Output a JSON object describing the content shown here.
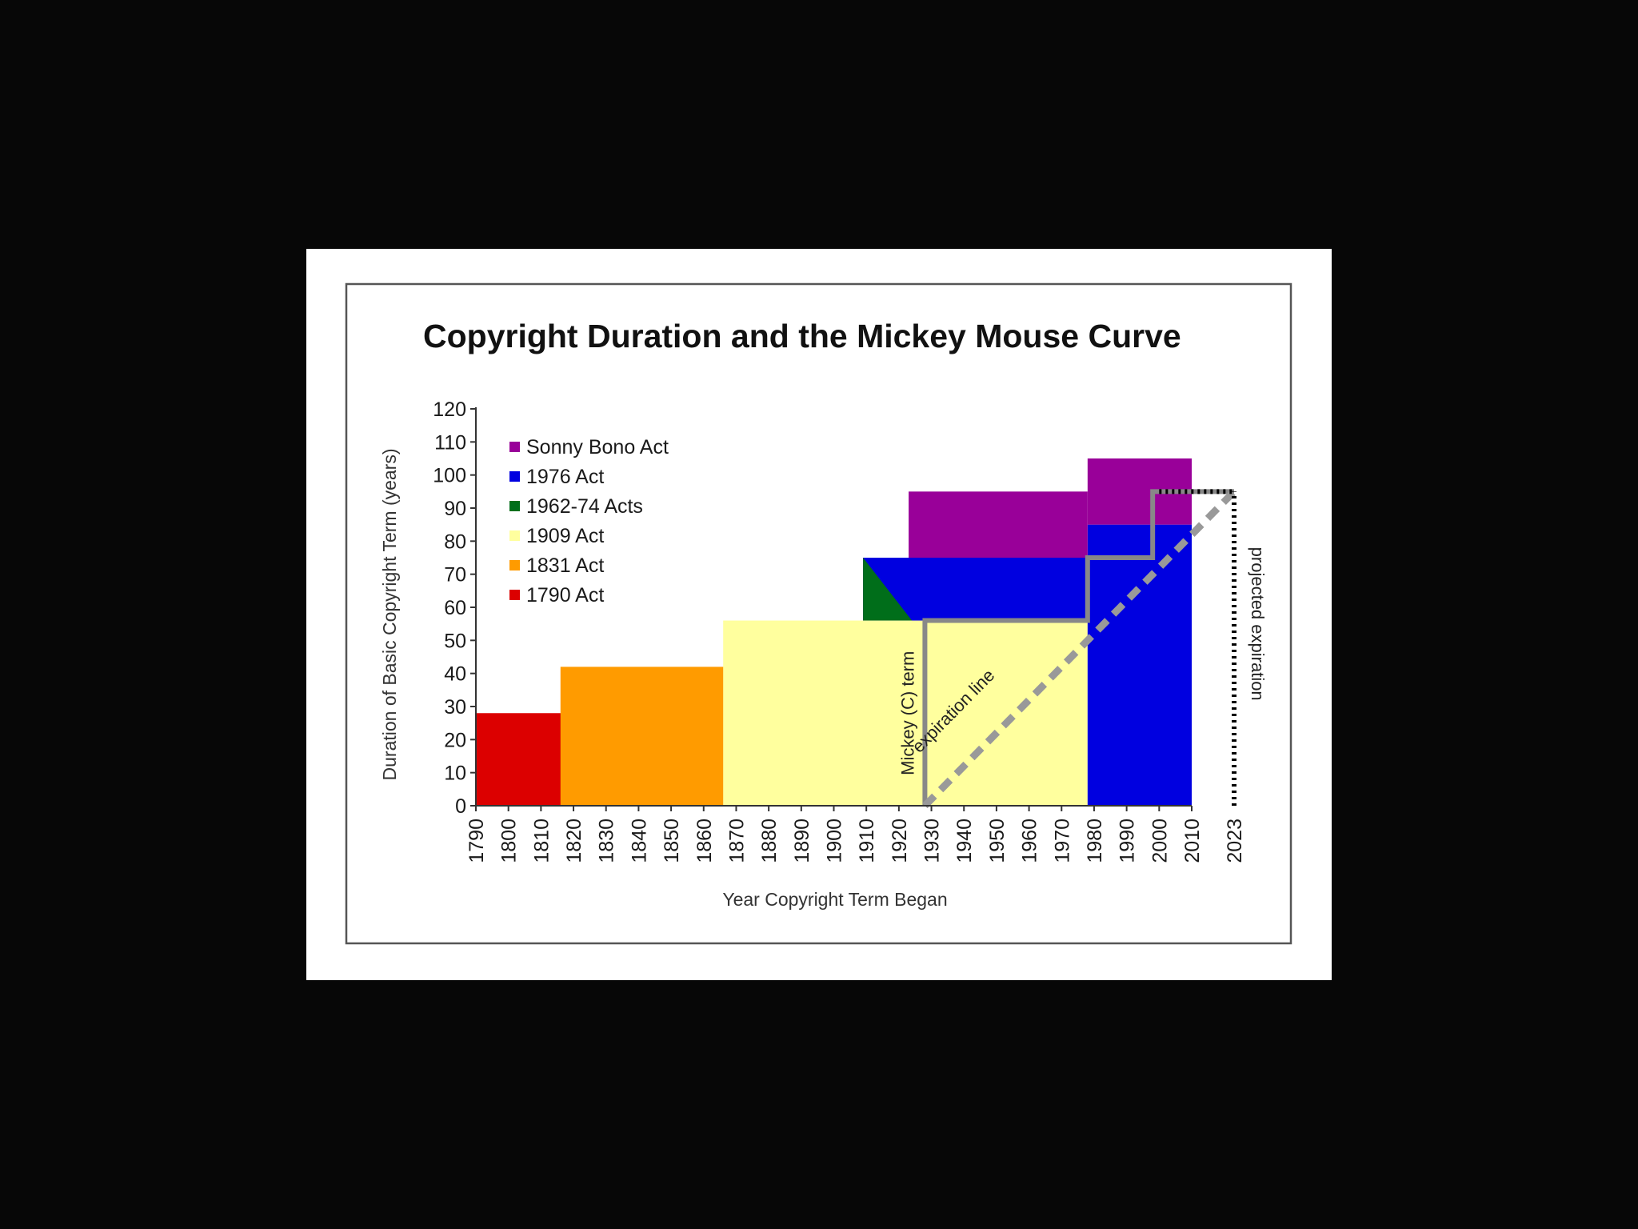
{
  "chart_data": {
    "type": "area",
    "title": "Copyright Duration and the Mickey Mouse Curve",
    "xlabel": "Year Copyright Term Began",
    "ylabel": "Duration of Basic Copyright Term (years)",
    "xlim": [
      1790,
      2023
    ],
    "ylim": [
      0,
      120
    ],
    "x_ticks": [
      1790,
      1800,
      1810,
      1820,
      1830,
      1840,
      1850,
      1860,
      1870,
      1880,
      1890,
      1900,
      1910,
      1920,
      1930,
      1940,
      1950,
      1960,
      1970,
      1980,
      1990,
      2000,
      2010,
      2023
    ],
    "y_ticks": [
      0,
      10,
      20,
      30,
      40,
      50,
      60,
      70,
      80,
      90,
      100,
      110,
      120
    ],
    "grid": false,
    "legend_position": "top-left",
    "series": [
      {
        "name": "Sonny Bono Act",
        "color": "#990099",
        "regions": [
          {
            "x": [
              1923,
              1978
            ],
            "y": [
              75,
              95
            ]
          },
          {
            "x": [
              1978,
              2010
            ],
            "y": [
              85,
              105
            ]
          }
        ]
      },
      {
        "name": "1976 Act",
        "color": "#0000e0",
        "regions": [
          {
            "x": [
              1909,
              1978
            ],
            "y": [
              56,
              75
            ]
          },
          {
            "x": [
              1978,
              2010
            ],
            "y": [
              0,
              85
            ]
          }
        ]
      },
      {
        "name": "1962-74 Acts",
        "color": "#006e1a",
        "regions": [
          {
            "x": [
              1909,
              1924
            ],
            "y": [
              56,
              75
            ]
          }
        ]
      },
      {
        "name": "1909 Act",
        "color": "#ffff9e",
        "regions": [
          {
            "x": [
              1866,
              1978
            ],
            "y": [
              0,
              56
            ]
          }
        ]
      },
      {
        "name": "1831 Act",
        "color": "#ff9b00",
        "regions": [
          {
            "x": [
              1816,
              1909
            ],
            "y": [
              0,
              42
            ]
          }
        ]
      },
      {
        "name": "1790 Act",
        "color": "#dc0000",
        "regions": [
          {
            "x": [
              1790,
              1831
            ],
            "y": [
              0,
              28
            ]
          }
        ]
      }
    ],
    "mickey_term": {
      "label": "Mickey (C) term",
      "color": "#888888",
      "x": [
        1928,
        1928,
        1978,
        1978,
        1998,
        1998,
        2023
      ],
      "y": [
        0,
        56,
        56,
        75,
        75,
        95,
        95
      ]
    },
    "expiration_line": {
      "label": "expiration line",
      "color": "#999999",
      "x": [
        1928,
        2023
      ],
      "y": [
        0,
        95
      ]
    },
    "projected_expiration": {
      "label": "projected expiration",
      "color": "#000000",
      "x": 2023,
      "y": [
        0,
        95
      ]
    }
  }
}
